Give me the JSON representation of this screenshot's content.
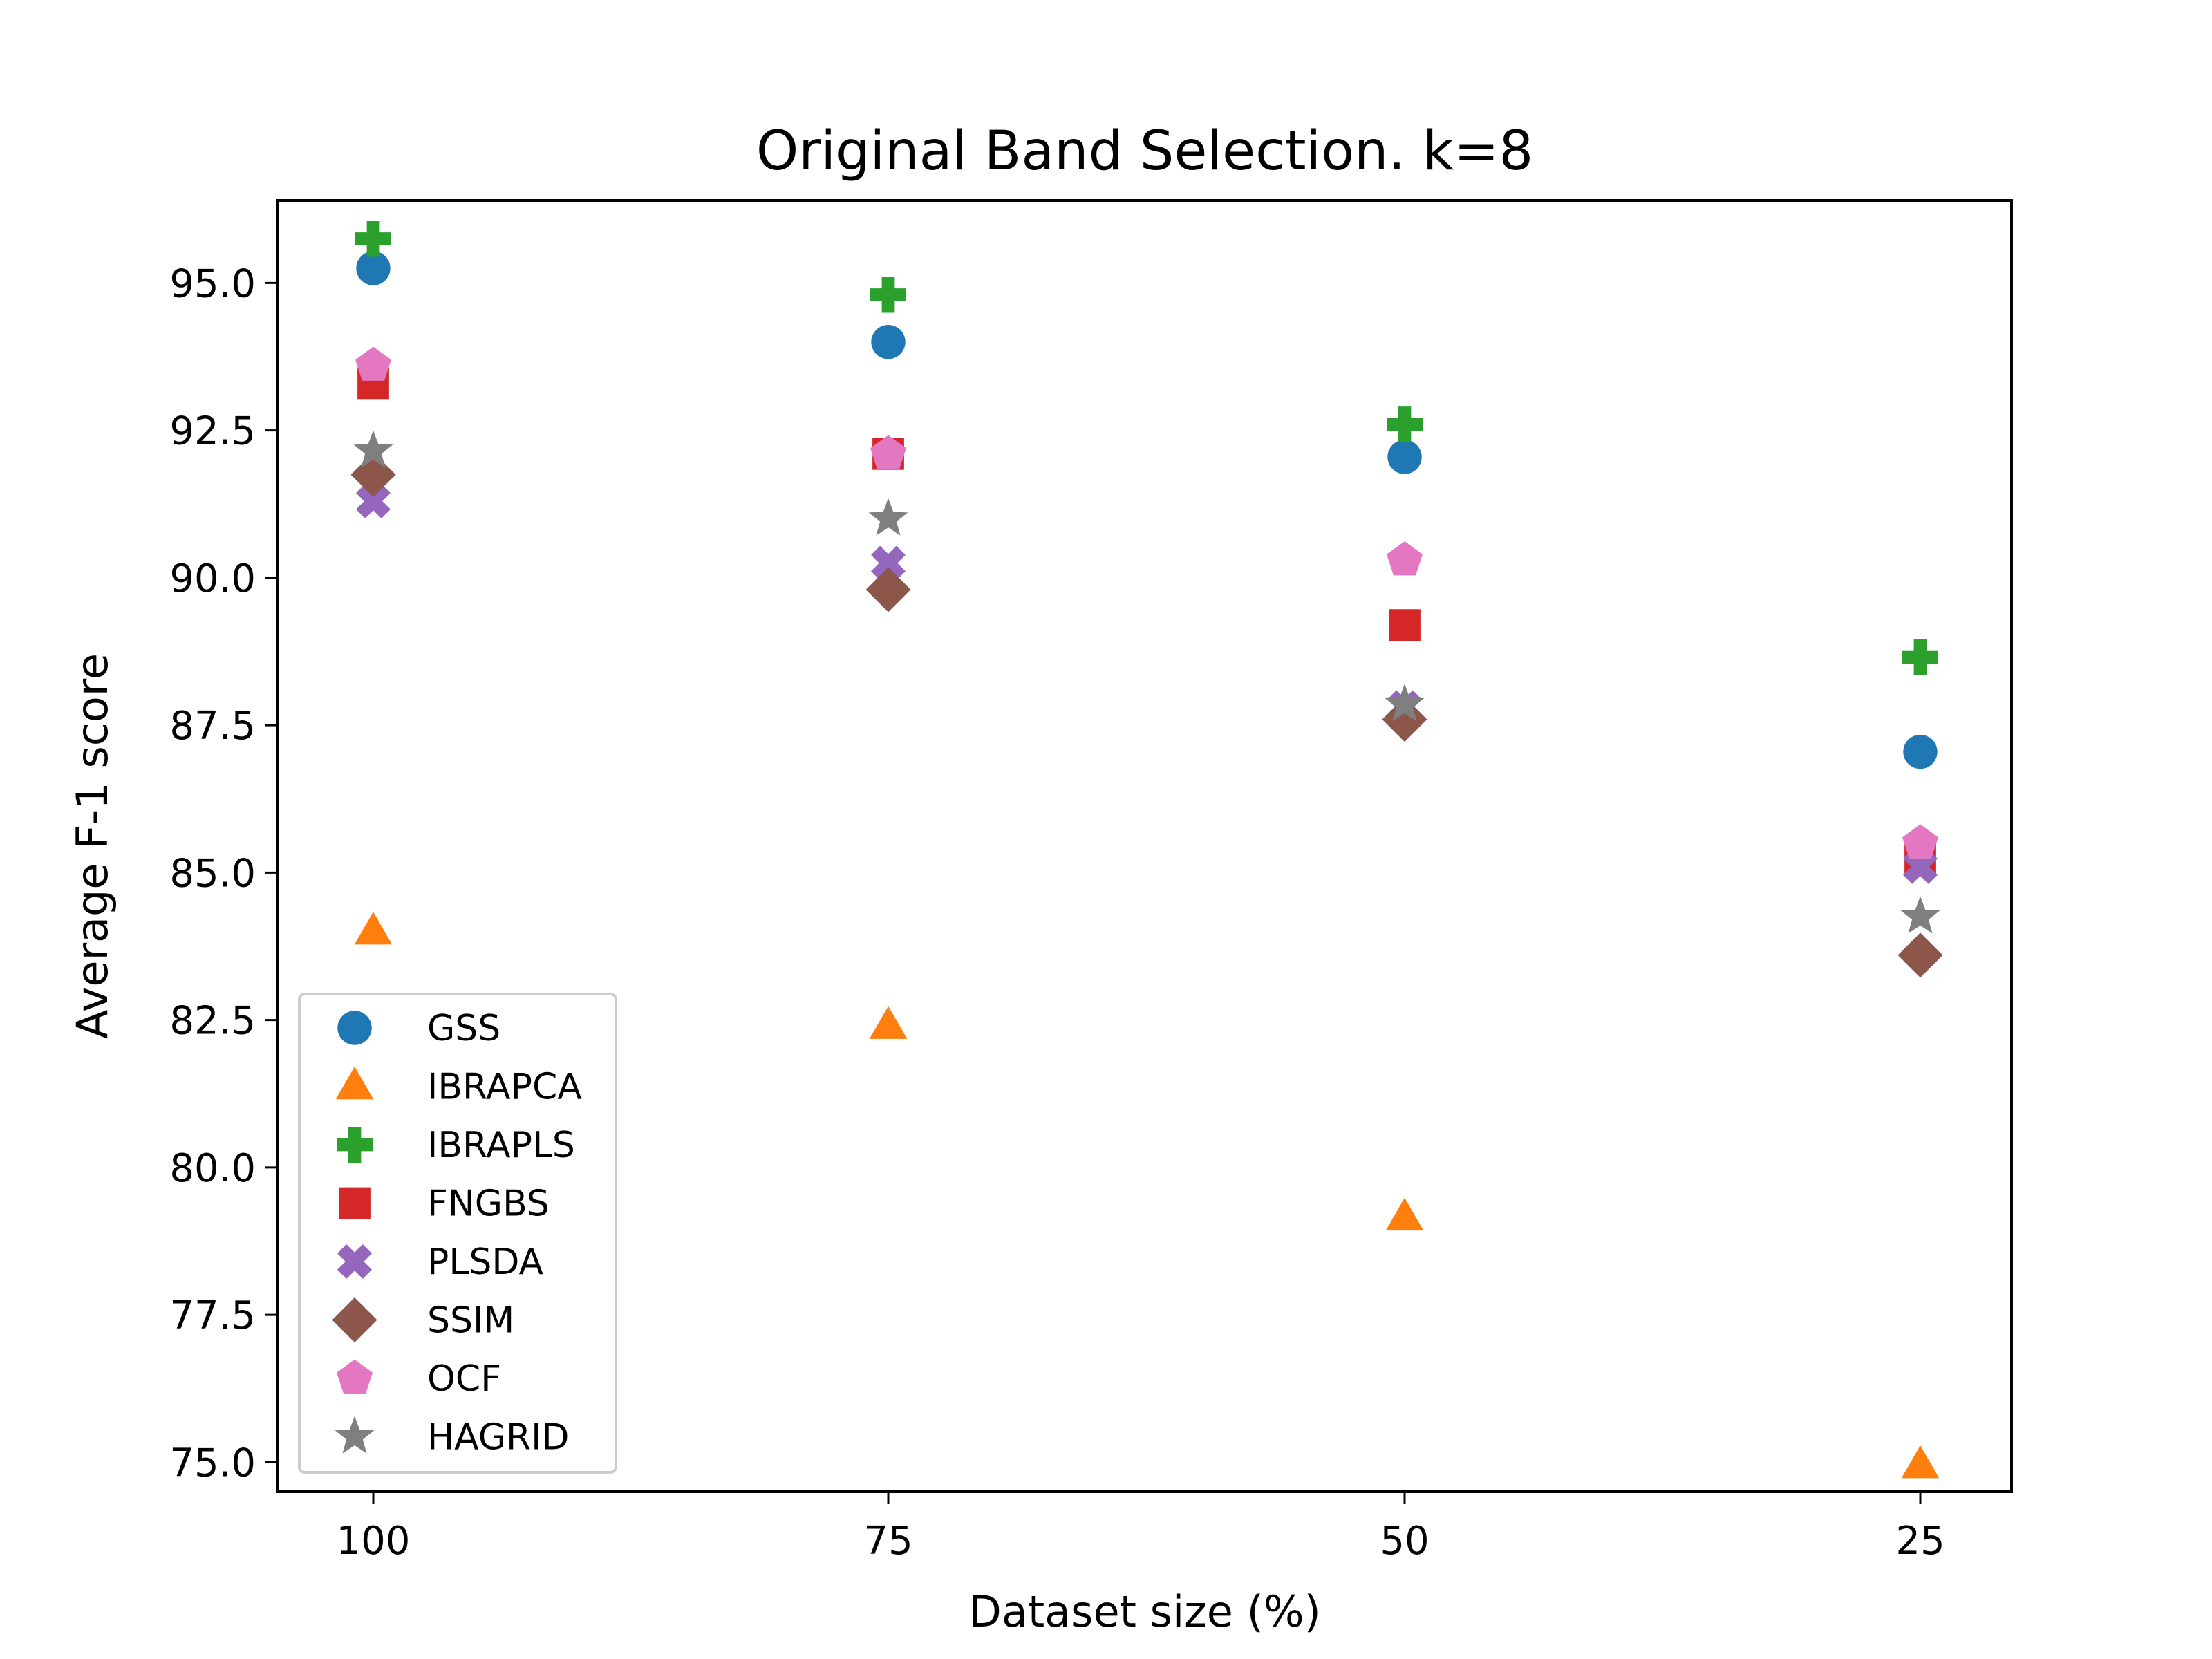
{
  "chart_data": {
    "type": "scatter",
    "title": "Original Band Selection. k=8",
    "xlabel": "Dataset size (%)",
    "ylabel": "Average F-1 score",
    "categories": [
      "100",
      "75",
      "50",
      "25"
    ],
    "yticks": [
      "75.0",
      "77.5",
      "80.0",
      "82.5",
      "85.0",
      "87.5",
      "90.0",
      "92.5",
      "95.0"
    ],
    "ylim": [
      74.5,
      96.4
    ],
    "grid": false,
    "legend_position": "lower-left",
    "series": [
      {
        "name": "GSS",
        "marker": "circle",
        "color": "#1f77b4",
        "values": [
          95.25,
          94.0,
          92.05,
          87.05
        ]
      },
      {
        "name": "IBRAPCA",
        "marker": "triangle",
        "color": "#ff7f0e",
        "values": [
          84.0,
          82.4,
          79.15,
          74.95
        ]
      },
      {
        "name": "IBRAPLS",
        "marker": "plus",
        "color": "#2ca02c",
        "values": [
          95.75,
          94.8,
          92.6,
          88.65
        ]
      },
      {
        "name": "FNGBS",
        "marker": "square",
        "color": "#d62728",
        "values": [
          93.3,
          92.1,
          89.2,
          85.25
        ]
      },
      {
        "name": "PLSDA",
        "marker": "x",
        "color": "#9467bd",
        "values": [
          91.3,
          90.25,
          87.8,
          85.1
        ]
      },
      {
        "name": "SSIM",
        "marker": "diamond",
        "color": "#8c564b",
        "values": [
          91.75,
          89.8,
          87.6,
          83.6
        ]
      },
      {
        "name": "OCF",
        "marker": "pentagon",
        "color": "#e377c2",
        "values": [
          93.6,
          92.1,
          90.3,
          85.5
        ]
      },
      {
        "name": "HAGRID",
        "marker": "star",
        "color": "#7f7f7f",
        "values": [
          92.15,
          91.0,
          87.85,
          84.25
        ]
      }
    ]
  }
}
